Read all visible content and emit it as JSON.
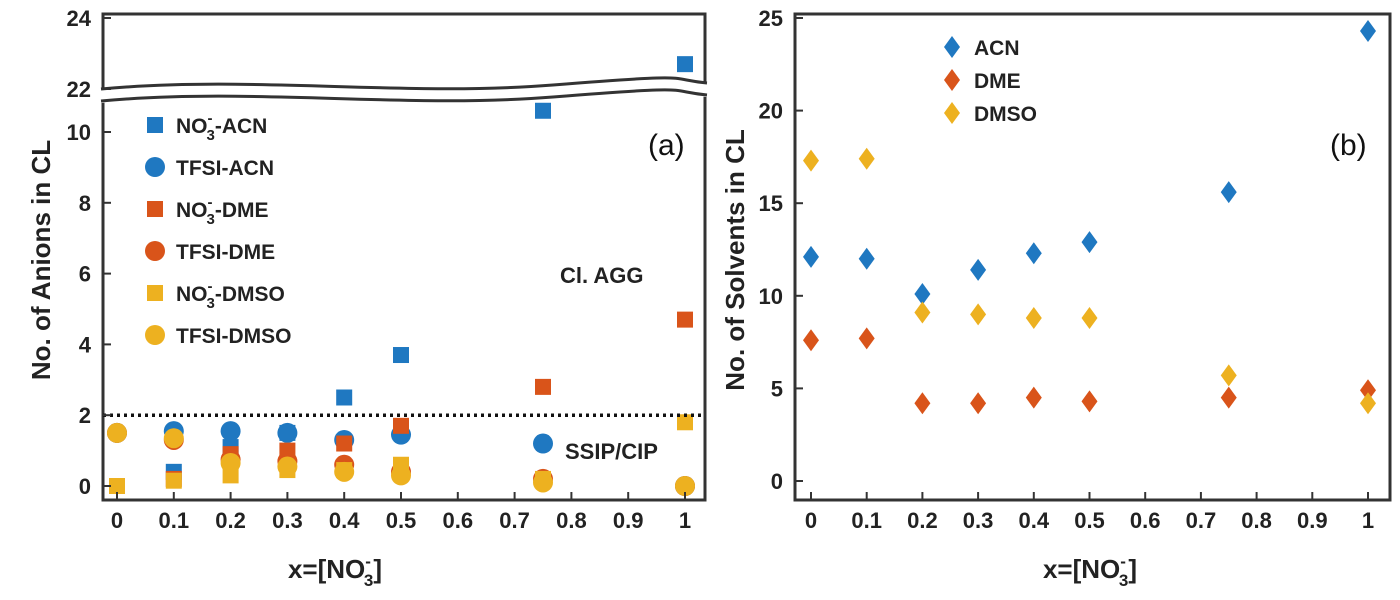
{
  "colors": {
    "blue": "#1f78c1",
    "orange": "#d9541a",
    "yellow": "#edb120"
  },
  "chart_data": [
    {
      "type": "scatter",
      "panel_label": "(a)",
      "ylabel": "No. of Anions in CL",
      "xlabel_main": "x=[NO",
      "xlabel_sub": "3",
      "xlabel_sup": "-",
      "xlabel_end": "]",
      "x_ticks": [
        "0",
        "0.1",
        "0.2",
        "0.3",
        "0.4",
        "0.5",
        "0.6",
        "0.7",
        "0.8",
        "0.9",
        "1"
      ],
      "xlim": [
        -0.02,
        1.02
      ],
      "y_ticks_lower": [
        "0",
        "2",
        "4",
        "6",
        "8",
        "10"
      ],
      "ylim_lower": [
        0,
        11
      ],
      "y_ticks_upper": [
        "22",
        "24"
      ],
      "ylim_upper": [
        22,
        24
      ],
      "axis_break": "between 11 and 22",
      "threshold_line": 2,
      "annotations": {
        "upper": "Cl. AGG",
        "lower": "SSIP/CIP"
      },
      "series": [
        {
          "name": "NO3-ACN",
          "legend": {
            "main": "NO",
            "sub": "3",
            "sup": "-",
            "rest": "-ACN"
          },
          "marker": "square",
          "color_key": "blue",
          "x": [
            0,
            0.1,
            0.2,
            0.3,
            0.4,
            0.5,
            0.75,
            1
          ],
          "y": [
            0,
            0.4,
            1.1,
            1.5,
            2.5,
            3.7,
            10.6,
            22.7
          ]
        },
        {
          "name": "TFSI-ACN",
          "legend": {
            "main": "TFSI-ACN"
          },
          "marker": "circle",
          "color_key": "blue",
          "x": [
            0,
            0.1,
            0.2,
            0.3,
            0.4,
            0.5,
            0.75,
            1
          ],
          "y": [
            1.5,
            1.55,
            1.55,
            1.5,
            1.3,
            1.45,
            1.2,
            0
          ]
        },
        {
          "name": "NO3-DME",
          "legend": {
            "main": "NO",
            "sub": "3",
            "sup": "-",
            "rest": "-DME"
          },
          "marker": "square",
          "color_key": "orange",
          "x": [
            0,
            0.1,
            0.2,
            0.3,
            0.4,
            0.5,
            0.75,
            1
          ],
          "y": [
            0,
            0.2,
            0.9,
            1.0,
            1.2,
            1.7,
            2.8,
            4.7
          ]
        },
        {
          "name": "TFSI-DME",
          "legend": {
            "main": "TFSI-DME"
          },
          "marker": "circle",
          "color_key": "orange",
          "x": [
            0,
            0.1,
            0.2,
            0.3,
            0.4,
            0.5,
            0.75,
            1
          ],
          "y": [
            1.5,
            1.3,
            0.75,
            0.7,
            0.6,
            0.4,
            0.2,
            0
          ]
        },
        {
          "name": "NO3-DMSO",
          "legend": {
            "main": "NO",
            "sub": "3",
            "sup": "-",
            "rest": "-DMSO"
          },
          "marker": "square",
          "color_key": "yellow",
          "x": [
            0,
            0.1,
            0.2,
            0.3,
            0.4,
            0.5,
            0.75,
            1
          ],
          "y": [
            0,
            0.15,
            0.3,
            0.45,
            0.45,
            0.6,
            0.2,
            1.8
          ]
        },
        {
          "name": "TFSI-DMSO",
          "legend": {
            "main": "TFSI-DMSO"
          },
          "marker": "circle",
          "color_key": "yellow",
          "x": [
            0,
            0.1,
            0.2,
            0.3,
            0.4,
            0.5,
            0.75,
            1
          ],
          "y": [
            1.5,
            1.35,
            0.65,
            0.55,
            0.4,
            0.3,
            0.1,
            0
          ]
        }
      ]
    },
    {
      "type": "scatter",
      "panel_label": "(b)",
      "ylabel": "No. of Solvents in CL",
      "xlabel_main": "x=[NO",
      "xlabel_sub": "3",
      "xlabel_sup": "-",
      "xlabel_end": "]",
      "x_ticks": [
        "0",
        "0.1",
        "0.2",
        "0.3",
        "0.4",
        "0.5",
        "0.6",
        "0.7",
        "0.8",
        "0.9",
        "1"
      ],
      "xlim": [
        -0.02,
        1.02
      ],
      "y_ticks": [
        "0",
        "5",
        "10",
        "15",
        "20",
        "25"
      ],
      "ylim": [
        -0.3,
        25.3
      ],
      "series": [
        {
          "name": "ACN",
          "legend": {
            "main": "ACN"
          },
          "marker": "diamond",
          "color_key": "blue",
          "x": [
            0,
            0.1,
            0.2,
            0.3,
            0.4,
            0.5,
            0.75,
            1
          ],
          "y": [
            12.1,
            12.0,
            10.1,
            11.4,
            12.3,
            12.9,
            15.6,
            24.3
          ]
        },
        {
          "name": "DME",
          "legend": {
            "main": "DME"
          },
          "marker": "diamond",
          "color_key": "orange",
          "x": [
            0,
            0.1,
            0.2,
            0.3,
            0.4,
            0.5,
            0.75,
            1
          ],
          "y": [
            7.6,
            7.7,
            4.2,
            4.2,
            4.5,
            4.3,
            4.5,
            4.9
          ]
        },
        {
          "name": "DMSO",
          "legend": {
            "main": "DMSO"
          },
          "marker": "diamond",
          "color_key": "yellow",
          "x": [
            0,
            0.1,
            0.2,
            0.3,
            0.4,
            0.5,
            0.75,
            1
          ],
          "y": [
            17.3,
            17.4,
            9.1,
            9.0,
            8.8,
            8.8,
            5.7,
            4.2
          ]
        }
      ]
    }
  ]
}
